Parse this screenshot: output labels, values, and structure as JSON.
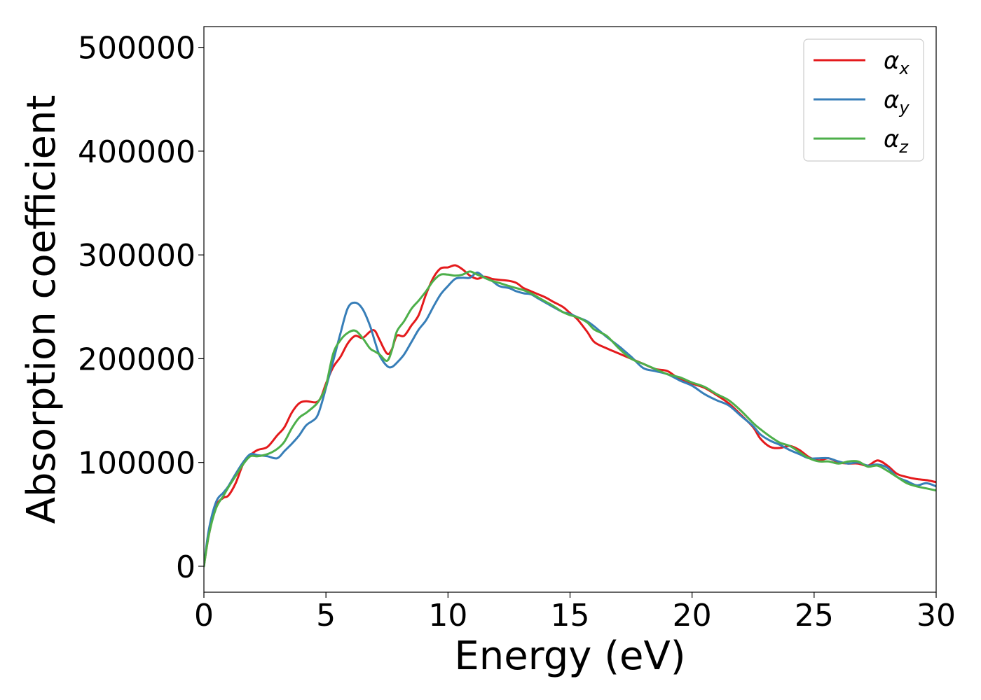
{
  "chart_data": {
    "type": "line",
    "title": "",
    "xlabel": "Energy (eV)",
    "ylabel": "Absorption coefficient",
    "xlim": [
      0,
      30
    ],
    "ylim": [
      -25000,
      520000
    ],
    "xticks": [
      0,
      5,
      10,
      15,
      20,
      25,
      30
    ],
    "xtick_labels": [
      "0",
      "5",
      "10",
      "15",
      "20",
      "25",
      "30"
    ],
    "yticks": [
      0,
      100000,
      200000,
      300000,
      400000,
      500000
    ],
    "ytick_labels": [
      "0",
      "100000",
      "200000",
      "300000",
      "400000",
      "500000"
    ],
    "grid": false,
    "legend": {
      "placement": "top-right"
    },
    "series": [
      {
        "name": "αx",
        "symbol": "α",
        "subscript": "x",
        "color": "#e41a1c",
        "x": [
          0,
          0.2,
          0.5,
          0.8,
          1.0,
          1.3,
          1.6,
          1.9,
          2.2,
          2.6,
          3.0,
          3.3,
          3.6,
          3.9,
          4.2,
          4.6,
          4.8,
          5.0,
          5.3,
          5.6,
          5.9,
          6.2,
          6.5,
          6.8,
          7.0,
          7.2,
          7.5,
          7.7,
          7.9,
          8.2,
          8.5,
          8.8,
          9.1,
          9.4,
          9.7,
          10.0,
          10.3,
          10.6,
          10.9,
          11.2,
          11.5,
          11.8,
          12.1,
          12.5,
          12.8,
          13.1,
          13.4,
          13.7,
          14.0,
          14.3,
          14.7,
          15.0,
          15.3,
          15.7,
          16.0,
          16.5,
          17.0,
          17.5,
          18.0,
          18.5,
          19.0,
          19.5,
          20.0,
          20.5,
          21.0,
          21.5,
          22.0,
          22.5,
          22.8,
          23.2,
          23.6,
          24.0,
          24.4,
          24.8,
          25.2,
          25.6,
          26.0,
          26.4,
          26.8,
          27.2,
          27.6,
          28.0,
          28.4,
          28.8,
          29.2,
          29.6,
          30.0
        ],
        "values": [
          0,
          30000,
          58000,
          66000,
          68000,
          80000,
          98000,
          107000,
          112000,
          115000,
          126000,
          134000,
          148000,
          157000,
          159000,
          158000,
          163000,
          176000,
          192000,
          202000,
          215000,
          222000,
          220000,
          226000,
          227000,
          218000,
          205000,
          209000,
          222000,
          222000,
          232000,
          242000,
          262000,
          278000,
          287000,
          288000,
          290000,
          286000,
          280000,
          277000,
          279000,
          277000,
          276000,
          275000,
          273000,
          268000,
          265000,
          262000,
          259000,
          255000,
          250000,
          244000,
          238000,
          226000,
          216000,
          210000,
          205000,
          200000,
          195000,
          190000,
          188000,
          180000,
          176000,
          172000,
          165000,
          157000,
          146000,
          134000,
          123000,
          115000,
          114000,
          116000,
          112000,
          105000,
          102000,
          104000,
          100000,
          99000,
          99000,
          97000,
          102000,
          97000,
          89000,
          86000,
          84000,
          83000,
          81000
        ]
      },
      {
        "name": "αy",
        "symbol": "α",
        "subscript": "y",
        "color": "#377eb8",
        "x": [
          0,
          0.2,
          0.5,
          0.8,
          1.0,
          1.3,
          1.6,
          1.9,
          2.2,
          2.6,
          3.0,
          3.3,
          3.6,
          3.9,
          4.2,
          4.6,
          4.8,
          5.0,
          5.3,
          5.6,
          5.9,
          6.2,
          6.5,
          6.8,
          7.0,
          7.2,
          7.5,
          7.7,
          7.9,
          8.2,
          8.5,
          8.8,
          9.1,
          9.4,
          9.7,
          10.0,
          10.3,
          10.6,
          10.9,
          11.2,
          11.5,
          11.8,
          12.1,
          12.5,
          12.8,
          13.1,
          13.4,
          13.7,
          14.0,
          14.3,
          14.7,
          15.0,
          15.3,
          15.7,
          16.0,
          16.5,
          17.0,
          17.5,
          18.0,
          18.5,
          19.0,
          19.5,
          20.0,
          20.5,
          21.0,
          21.5,
          22.0,
          22.5,
          22.8,
          23.2,
          23.6,
          24.0,
          24.4,
          24.8,
          25.2,
          25.6,
          26.0,
          26.4,
          26.8,
          27.2,
          27.6,
          28.0,
          28.4,
          28.8,
          29.2,
          29.6,
          30.0
        ],
        "values": [
          0,
          35000,
          62000,
          71000,
          77000,
          89000,
          100000,
          108000,
          107000,
          106000,
          104000,
          111000,
          118000,
          126000,
          136000,
          143000,
          155000,
          172000,
          198000,
          225000,
          249000,
          254000,
          248000,
          232000,
          217000,
          203000,
          193000,
          192000,
          196000,
          204000,
          216000,
          228000,
          237000,
          250000,
          262000,
          270000,
          277000,
          278000,
          278000,
          283000,
          278000,
          275000,
          270000,
          268000,
          265000,
          263000,
          262000,
          258000,
          254000,
          250000,
          245000,
          243000,
          240000,
          236000,
          231000,
          221000,
          212000,
          202000,
          191000,
          188000,
          185000,
          179000,
          174000,
          166000,
          160000,
          155000,
          145000,
          135000,
          127000,
          121000,
          117000,
          112000,
          108000,
          104000,
          104000,
          104000,
          101000,
          99000,
          100000,
          97000,
          98000,
          95000,
          86000,
          82000,
          78000,
          80000,
          77000
        ]
      },
      {
        "name": "αz",
        "symbol": "α",
        "subscript": "z",
        "color": "#4daf4a",
        "x": [
          0,
          0.2,
          0.5,
          0.8,
          1.0,
          1.3,
          1.6,
          1.9,
          2.2,
          2.6,
          3.0,
          3.3,
          3.6,
          3.9,
          4.2,
          4.6,
          4.8,
          5.0,
          5.3,
          5.6,
          5.9,
          6.2,
          6.5,
          6.8,
          7.0,
          7.2,
          7.5,
          7.7,
          7.9,
          8.2,
          8.5,
          8.8,
          9.1,
          9.4,
          9.7,
          10.0,
          10.3,
          10.6,
          10.9,
          11.2,
          11.5,
          11.8,
          12.1,
          12.5,
          12.8,
          13.1,
          13.4,
          13.7,
          14.0,
          14.3,
          14.7,
          15.0,
          15.3,
          15.7,
          16.0,
          16.5,
          17.0,
          17.5,
          18.0,
          18.5,
          19.0,
          19.5,
          20.0,
          20.5,
          21.0,
          21.5,
          22.0,
          22.5,
          22.8,
          23.2,
          23.6,
          24.0,
          24.4,
          24.8,
          25.2,
          25.6,
          26.0,
          26.4,
          26.8,
          27.2,
          27.6,
          28.0,
          28.4,
          28.8,
          29.2,
          29.6,
          30.0
        ],
        "values": [
          0,
          30000,
          56000,
          68000,
          76000,
          87000,
          98000,
          106000,
          106000,
          108000,
          113000,
          120000,
          133000,
          143000,
          148000,
          156000,
          163000,
          174000,
          205000,
          218000,
          225000,
          227000,
          220000,
          210000,
          207000,
          204000,
          198000,
          208000,
          226000,
          236000,
          248000,
          256000,
          265000,
          275000,
          281000,
          281000,
          280000,
          281000,
          284000,
          281000,
          278000,
          275000,
          273000,
          270000,
          268000,
          266000,
          263000,
          259000,
          255000,
          251000,
          245000,
          242000,
          240000,
          235000,
          228000,
          222000,
          210000,
          200000,
          195000,
          190000,
          185000,
          182000,
          177000,
          173000,
          166000,
          160000,
          150000,
          138000,
          132000,
          125000,
          119000,
          116000,
          110000,
          104000,
          101000,
          101000,
          99000,
          101000,
          101000,
          96000,
          97000,
          92000,
          86000,
          80000,
          77000,
          75000,
          73000
        ]
      }
    ]
  }
}
